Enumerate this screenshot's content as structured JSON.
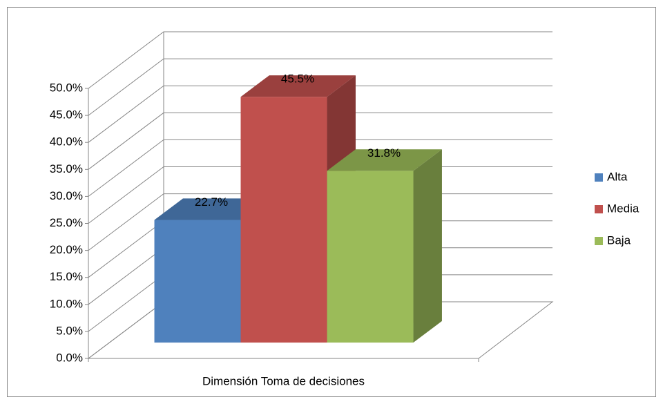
{
  "chart_data": {
    "type": "bar3d",
    "categories": [
      "Dimensión Toma de decisiones"
    ],
    "series": [
      {
        "name": "Alta",
        "color": "#4f81bd",
        "values": [
          22.7
        ],
        "value_labels": [
          "22.7%"
        ]
      },
      {
        "name": "Media",
        "color": "#c0504d",
        "values": [
          45.5
        ],
        "value_labels": [
          "45.5%"
        ]
      },
      {
        "name": "Baja",
        "color": "#9bbb59",
        "values": [
          31.8
        ],
        "value_labels": [
          "31.8%"
        ]
      }
    ],
    "ylim": [
      0,
      50
    ],
    "yticks": [
      {
        "value": 0,
        "label": "0.0%"
      },
      {
        "value": 5,
        "label": "5.0%"
      },
      {
        "value": 10,
        "label": "10.0%"
      },
      {
        "value": 15,
        "label": "15.0%"
      },
      {
        "value": 20,
        "label": "20.0%"
      },
      {
        "value": 25,
        "label": "25.0%"
      },
      {
        "value": 30,
        "label": "30.0%"
      },
      {
        "value": 35,
        "label": "35.0%"
      },
      {
        "value": 40,
        "label": "40.0%"
      },
      {
        "value": 45,
        "label": "45.0%"
      },
      {
        "value": 50,
        "label": "50.0%"
      }
    ],
    "grid": true,
    "legend": "right"
  }
}
